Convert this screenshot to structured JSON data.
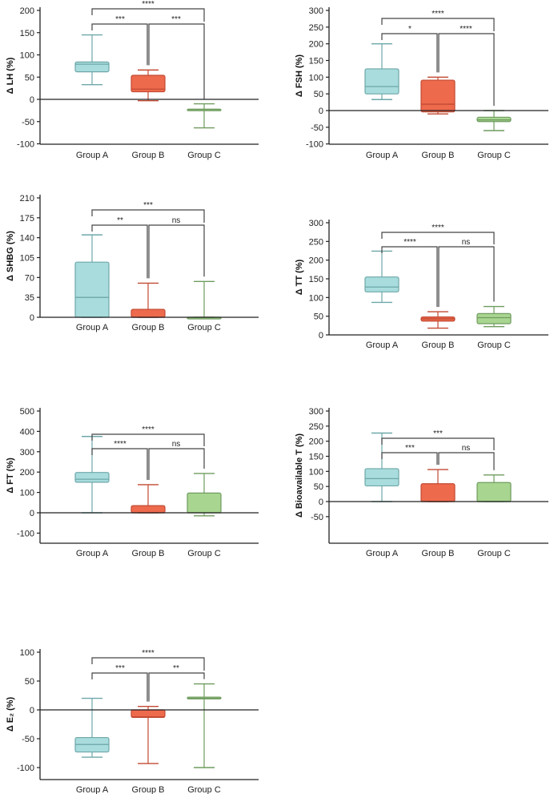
{
  "chart_data": [
    {
      "type": "box",
      "ylabel": "Δ LH (%)",
      "categories": [
        "Group A",
        "Group B",
        "Group C"
      ],
      "ylim": [
        -100,
        200
      ],
      "yticks": [
        200,
        150,
        100,
        50,
        0,
        -50,
        -100
      ],
      "series": [
        {
          "name": "Group A",
          "min": 33,
          "q1": 62,
          "median": 79,
          "q3": 84,
          "max": 145
        },
        {
          "name": "Group B",
          "min": -3,
          "q1": 17,
          "median": 23,
          "q3": 54,
          "max": 66
        },
        {
          "name": "Group C",
          "min": -64,
          "q1": -24,
          "median": -23,
          "q3": -22,
          "max": -10
        }
      ],
      "significance": {
        "A_C": "****",
        "A_B": "***",
        "B_C": "***"
      }
    },
    {
      "type": "box",
      "ylabel": "Δ FSH (%)",
      "categories": [
        "Group A",
        "Group B",
        "Group C"
      ],
      "ylim": [
        -100,
        300
      ],
      "yticks": [
        300,
        250,
        200,
        150,
        100,
        50,
        0,
        -50,
        -100
      ],
      "series": [
        {
          "name": "Group A",
          "min": 33,
          "q1": 50,
          "median": 72,
          "q3": 125,
          "max": 200
        },
        {
          "name": "Group B",
          "min": -10,
          "q1": -4,
          "median": 19,
          "q3": 91,
          "max": 100
        },
        {
          "name": "Group C",
          "min": -60,
          "q1": -33,
          "median": -28,
          "q3": -20,
          "max": 0
        }
      ],
      "significance": {
        "A_C": "****",
        "A_B": "*",
        "B_C": "****"
      }
    },
    {
      "type": "box",
      "ylabel": "Δ SHBG (%)",
      "categories": [
        "Group A",
        "Group B",
        "Group C"
      ],
      "ylim": [
        0,
        210
      ],
      "yticks": [
        210,
        175,
        140,
        105,
        70,
        35,
        0
      ],
      "series": [
        {
          "name": "Group A",
          "min": 0,
          "q1": 0,
          "median": 35,
          "q3": 97,
          "max": 145
        },
        {
          "name": "Group B",
          "min": 0,
          "q1": 0,
          "median": 0,
          "q3": 14,
          "max": 60
        },
        {
          "name": "Group C",
          "min": 0,
          "q1": 0,
          "median": 0,
          "q3": 0,
          "max": 63
        }
      ],
      "significance": {
        "A_C": "***",
        "A_B": "**",
        "B_C": "ns"
      }
    },
    {
      "type": "box",
      "ylabel": "Δ TT (%)",
      "categories": [
        "Group A",
        "Group B",
        "Group C"
      ],
      "ylim": [
        0,
        300
      ],
      "yticks": [
        300,
        250,
        200,
        150,
        100,
        50,
        0
      ],
      "series": [
        {
          "name": "Group A",
          "min": 87,
          "q1": 115,
          "median": 128,
          "q3": 155,
          "max": 224
        },
        {
          "name": "Group B",
          "min": 18,
          "q1": 37,
          "median": 43,
          "q3": 48,
          "max": 62
        },
        {
          "name": "Group C",
          "min": 22,
          "q1": 30,
          "median": 46,
          "q3": 57,
          "max": 76
        }
      ],
      "significance": {
        "A_C": "****",
        "A_B": "****",
        "B_C": "ns"
      }
    },
    {
      "type": "box",
      "ylabel": "Δ FT (%)",
      "categories": [
        "Group A",
        "Group B",
        "Group C"
      ],
      "ylim": [
        -150,
        500
      ],
      "yticks": [
        500,
        400,
        300,
        200,
        100,
        0,
        -100
      ],
      "series": [
        {
          "name": "Group A",
          "min": 0,
          "q1": 150,
          "median": 165,
          "q3": 198,
          "max": 375
        },
        {
          "name": "Group B",
          "min": 0,
          "q1": 0,
          "median": 0,
          "q3": 35,
          "max": 138
        },
        {
          "name": "Group C",
          "min": -15,
          "q1": 0,
          "median": 0,
          "q3": 97,
          "max": 193
        }
      ],
      "significance": {
        "A_C": "****",
        "A_B": "****",
        "B_C": "ns"
      }
    },
    {
      "type": "box",
      "ylabel": "Δ Bioavailable T (%)",
      "categories": [
        "Group A",
        "Group B",
        "Group C"
      ],
      "ylim": [
        -50,
        300
      ],
      "yticks": [
        300,
        250,
        200,
        150,
        100,
        50,
        0,
        -50
      ],
      "series": [
        {
          "name": "Group A",
          "min": 0,
          "q1": 52,
          "median": 76,
          "q3": 109,
          "max": 227
        },
        {
          "name": "Group B",
          "min": 0,
          "q1": 0,
          "median": 0,
          "q3": 59,
          "max": 106
        },
        {
          "name": "Group C",
          "min": 0,
          "q1": 0,
          "median": 0,
          "q3": 63,
          "max": 88
        }
      ],
      "significance": {
        "A_C": "***",
        "A_B": "***",
        "B_C": "ns"
      }
    },
    {
      "type": "box",
      "ylabel": "Δ E₂ (%)",
      "categories": [
        "Group A",
        "Group B",
        "Group C"
      ],
      "ylim": [
        -120,
        110
      ],
      "yticks": [
        100,
        50,
        0,
        -50,
        -100
      ],
      "series": [
        {
          "name": "Group A",
          "min": -82,
          "q1": -73,
          "median": -60,
          "q3": -48,
          "max": 20
        },
        {
          "name": "Group B",
          "min": -93,
          "q1": -13,
          "median": -12,
          "q3": 0,
          "max": 6
        },
        {
          "name": "Group C",
          "min": -100,
          "q1": 19,
          "median": 20,
          "q3": 22,
          "max": 45
        }
      ],
      "significance": {
        "A_C": "****",
        "A_B": "***",
        "B_C": "**"
      }
    }
  ],
  "colors": {
    "fill": [
      "#a9dcdd",
      "#ee6a4c",
      "#a8d590"
    ],
    "stroke": [
      "#6ea7a9",
      "#c24a33",
      "#6f9c5f"
    ]
  }
}
